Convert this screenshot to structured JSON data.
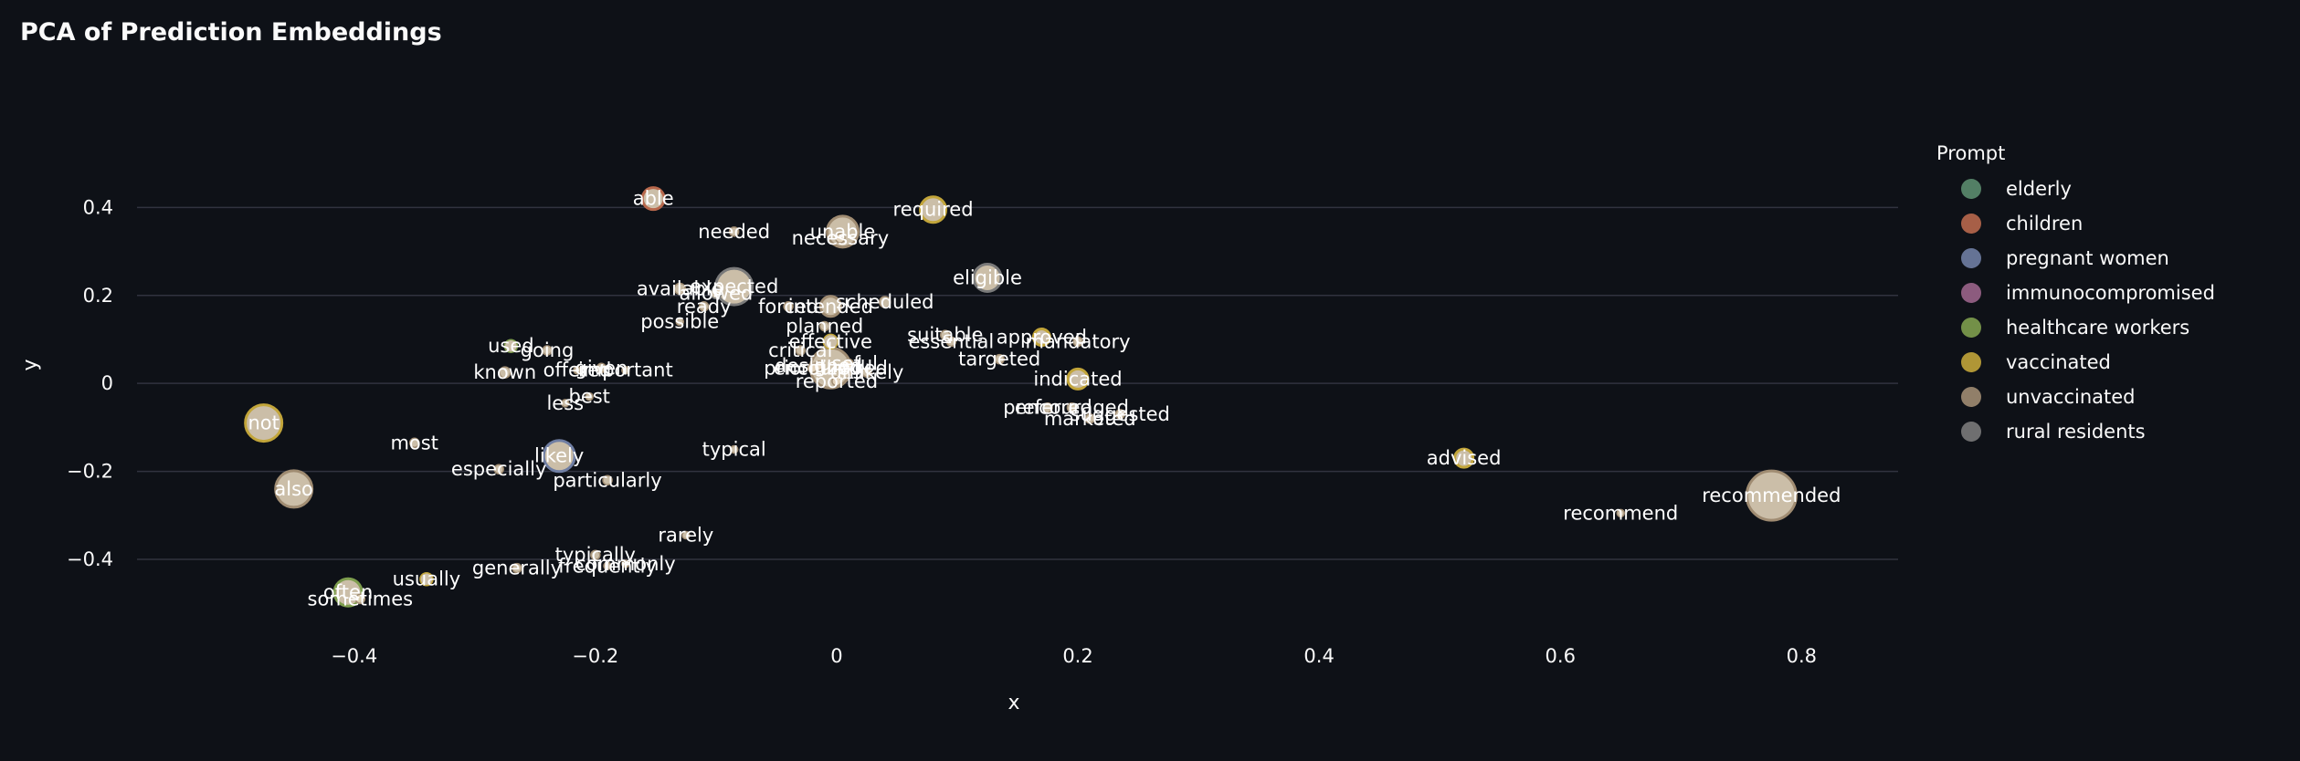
{
  "chart_data": {
    "type": "scatter",
    "title": "PCA of Prediction Embeddings",
    "xlabel": "x",
    "ylabel": "y",
    "xlim": [
      -0.58,
      0.88
    ],
    "ylim": [
      -0.57,
      0.55
    ],
    "xticks": [
      -0.4,
      -0.2,
      0,
      0.2,
      0.4,
      0.6,
      0.8
    ],
    "xtick_labels": [
      "−0.4",
      "−0.2",
      "0",
      "0.2",
      "0.4",
      "0.6",
      "0.8"
    ],
    "yticks": [
      -0.4,
      -0.2,
      0,
      0.2,
      0.4
    ],
    "ytick_labels": [
      "−0.4",
      "−0.2",
      "0",
      "0.2",
      "0.4"
    ],
    "grid": "horizontal",
    "legend_title": "Prompt",
    "legend_position": "right",
    "series": [
      {
        "name": "elderly",
        "color": "#5b8c6e"
      },
      {
        "name": "children",
        "color": "#b8684c"
      },
      {
        "name": "pregnant women",
        "color": "#6f7ea3"
      },
      {
        "name": "immunocompromised",
        "color": "#9a648a"
      },
      {
        "name": "healthcare workers",
        "color": "#7e9e4e"
      },
      {
        "name": "vaccinated",
        "color": "#c2a53a"
      },
      {
        "name": "unvaccinated",
        "color": "#a08c72"
      },
      {
        "name": "rural residents",
        "color": "#7a7a7a"
      }
    ],
    "points": [
      {
        "label": "able",
        "x": -0.152,
        "y": 0.42,
        "series": "children",
        "size": 12
      },
      {
        "label": "required",
        "x": 0.08,
        "y": 0.395,
        "series": "vaccinated",
        "size": 14
      },
      {
        "label": "needed",
        "x": -0.085,
        "y": 0.345,
        "series": "unvaccinated",
        "size": 5
      },
      {
        "label": "unable",
        "x": 0.005,
        "y": 0.345,
        "series": "unvaccinated",
        "size": 17
      },
      {
        "label": "necessary",
        "x": 0.003,
        "y": 0.33,
        "series": "unvaccinated",
        "size": 5
      },
      {
        "label": "eligible",
        "x": 0.125,
        "y": 0.24,
        "series": "rural residents",
        "size": 15
      },
      {
        "label": "expected",
        "x": -0.085,
        "y": 0.22,
        "series": "rural residents",
        "size": 20
      },
      {
        "label": "available",
        "x": -0.13,
        "y": 0.215,
        "series": "unvaccinated",
        "size": 6
      },
      {
        "label": "allowed",
        "x": -0.1,
        "y": 0.205,
        "series": "rural residents",
        "size": 6
      },
      {
        "label": "scheduled",
        "x": 0.04,
        "y": 0.185,
        "series": "unvaccinated",
        "size": 6
      },
      {
        "label": "ready",
        "x": -0.11,
        "y": 0.175,
        "series": "unvaccinated",
        "size": 5
      },
      {
        "label": "forced",
        "x": -0.04,
        "y": 0.175,
        "series": "unvaccinated",
        "size": 5
      },
      {
        "label": "intended",
        "x": -0.005,
        "y": 0.175,
        "series": "unvaccinated",
        "size": 11
      },
      {
        "label": "possible",
        "x": -0.13,
        "y": 0.14,
        "series": "unvaccinated",
        "size": 4
      },
      {
        "label": "planned",
        "x": -0.01,
        "y": 0.13,
        "series": "unvaccinated",
        "size": 5
      },
      {
        "label": "suitable",
        "x": 0.09,
        "y": 0.11,
        "series": "unvaccinated",
        "size": 5
      },
      {
        "label": "approved",
        "x": 0.17,
        "y": 0.105,
        "series": "vaccinated",
        "size": 9
      },
      {
        "label": "mandatory",
        "x": 0.2,
        "y": 0.095,
        "series": "unvaccinated",
        "size": 5
      },
      {
        "label": "essential",
        "x": 0.095,
        "y": 0.095,
        "series": "unvaccinated",
        "size": 5
      },
      {
        "label": "effective",
        "x": -0.005,
        "y": 0.095,
        "series": "vaccinated",
        "size": 8
      },
      {
        "label": "used",
        "x": -0.27,
        "y": 0.085,
        "series": "healthcare workers",
        "size": 7
      },
      {
        "label": "going",
        "x": -0.24,
        "y": 0.075,
        "series": "unvaccinated",
        "size": 5
      },
      {
        "label": "critical",
        "x": -0.03,
        "y": 0.075,
        "series": "unvaccinated",
        "size": 5
      },
      {
        "label": "targeted",
        "x": 0.135,
        "y": 0.055,
        "series": "unvaccinated",
        "size": 5
      },
      {
        "label": "useful",
        "x": 0.01,
        "y": 0.045,
        "series": "unvaccinated",
        "size": 5
      },
      {
        "label": "designed",
        "x": -0.015,
        "y": 0.04,
        "series": "unvaccinated",
        "size": 5
      },
      {
        "label": "given",
        "x": -0.195,
        "y": 0.035,
        "series": "unvaccinated",
        "size": 5
      },
      {
        "label": "important",
        "x": -0.175,
        "y": 0.03,
        "series": "unvaccinated",
        "size": 4
      },
      {
        "label": "offered",
        "x": -0.215,
        "y": 0.03,
        "series": "unvaccinated",
        "size": 4
      },
      {
        "label": "prioritized",
        "x": -0.02,
        "y": 0.035,
        "series": "unvaccinated",
        "size": 5
      },
      {
        "label": "encouraged",
        "x": -0.005,
        "y": 0.035,
        "series": "unvaccinated",
        "size": 22
      },
      {
        "label": "unlikely",
        "x": 0.025,
        "y": 0.025,
        "series": "unvaccinated",
        "size": 5
      },
      {
        "label": "known",
        "x": -0.275,
        "y": 0.025,
        "series": "unvaccinated",
        "size": 6
      },
      {
        "label": "indicated",
        "x": 0.2,
        "y": 0.01,
        "series": "vaccinated",
        "size": 11
      },
      {
        "label": "reported",
        "x": 0,
        "y": 0.005,
        "series": "unvaccinated",
        "size": 5
      },
      {
        "label": "best",
        "x": -0.205,
        "y": -0.03,
        "series": "unvaccinated",
        "size": 4
      },
      {
        "label": "less",
        "x": -0.225,
        "y": -0.045,
        "series": "unvaccinated",
        "size": 4
      },
      {
        "label": "preferred",
        "x": 0.175,
        "y": -0.055,
        "series": "unvaccinated",
        "size": 5
      },
      {
        "label": "encouraged",
        "x": 0.195,
        "y": -0.055,
        "series": "unvaccinated",
        "size": 5
      },
      {
        "label": "suggested",
        "x": 0.235,
        "y": -0.07,
        "series": "unvaccinated",
        "size": 5
      },
      {
        "label": "marketed",
        "x": 0.21,
        "y": -0.08,
        "series": "unvaccinated",
        "size": 5
      },
      {
        "label": "not",
        "x": -0.475,
        "y": -0.09,
        "series": "vaccinated",
        "size": 20
      },
      {
        "label": "most",
        "x": -0.35,
        "y": -0.135,
        "series": "unvaccinated",
        "size": 5
      },
      {
        "label": "typical",
        "x": -0.085,
        "y": -0.15,
        "series": "unvaccinated",
        "size": 4
      },
      {
        "label": "likely",
        "x": -0.23,
        "y": -0.165,
        "series": "pregnant women",
        "size": 17
      },
      {
        "label": "advised",
        "x": 0.52,
        "y": -0.17,
        "series": "vaccinated",
        "size": 10
      },
      {
        "label": "especially",
        "x": -0.28,
        "y": -0.195,
        "series": "unvaccinated",
        "size": 5
      },
      {
        "label": "particularly",
        "x": -0.19,
        "y": -0.22,
        "series": "unvaccinated",
        "size": 5
      },
      {
        "label": "also",
        "x": -0.45,
        "y": -0.24,
        "series": "unvaccinated",
        "size": 20
      },
      {
        "label": "recommended",
        "x": 0.775,
        "y": -0.255,
        "series": "unvaccinated",
        "size": 27
      },
      {
        "label": "recommend",
        "x": 0.65,
        "y": -0.295,
        "series": "unvaccinated",
        "size": 4
      },
      {
        "label": "rarely",
        "x": -0.125,
        "y": -0.345,
        "series": "unvaccinated",
        "size": 4
      },
      {
        "label": "typically",
        "x": -0.2,
        "y": -0.39,
        "series": "unvaccinated",
        "size": 5
      },
      {
        "label": "commonly",
        "x": -0.175,
        "y": -0.41,
        "series": "unvaccinated",
        "size": 4
      },
      {
        "label": "frequently",
        "x": -0.19,
        "y": -0.415,
        "series": "unvaccinated",
        "size": 4
      },
      {
        "label": "generally",
        "x": -0.265,
        "y": -0.42,
        "series": "unvaccinated",
        "size": 5
      },
      {
        "label": "usually",
        "x": -0.34,
        "y": -0.445,
        "series": "vaccinated",
        "size": 7
      },
      {
        "label": "often",
        "x": -0.405,
        "y": -0.475,
        "series": "healthcare workers",
        "size": 15
      },
      {
        "label": "sometimes",
        "x": -0.395,
        "y": -0.49,
        "series": "unvaccinated",
        "size": 5
      }
    ]
  }
}
